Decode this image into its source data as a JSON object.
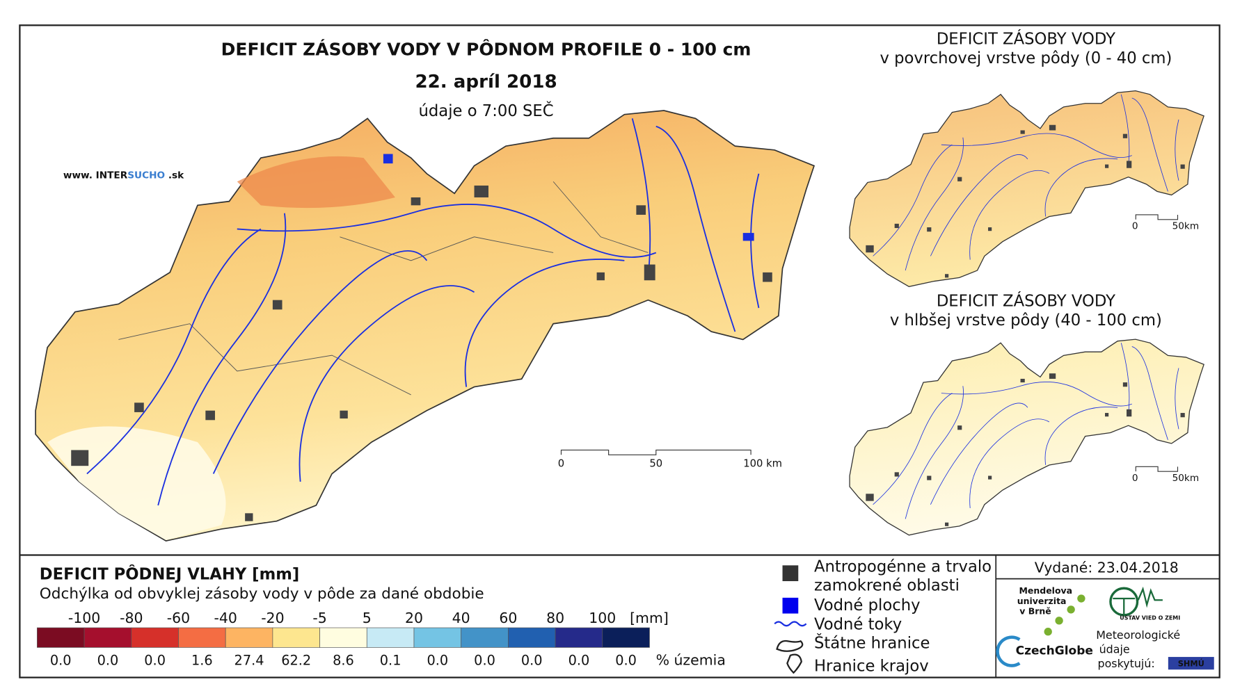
{
  "map": {
    "title": "DEFICIT ZÁSOBY VODY V PÔDNOM PROFILE 0 - 100 cm",
    "date": "22. apríl 2018",
    "time": "údaje o 7:00 SEČ",
    "website": [
      "www. INTER",
      "SUCHO",
      " .sk"
    ],
    "scale": [
      "0",
      "50",
      "100 km"
    ]
  },
  "inset_top": {
    "title": "DEFICIT ZÁSOBY VODY",
    "subtitle": "v povrchovej vrstve pôdy (0 - 40 cm)",
    "scale": [
      "0",
      "50km"
    ]
  },
  "inset_bottom": {
    "title": "DEFICIT ZÁSOBY VODY",
    "subtitle": "v hlbšej vrstve pôdy (40 - 100 cm)",
    "scale": [
      "0",
      "50km"
    ]
  },
  "legend": {
    "title": "DEFICIT PÔDNEJ VLAHY [mm]",
    "subtitle": "Odchýlka od obvyklej zásoby vody v pôde za dané obdobie",
    "thresholds": [
      "-100",
      "-80",
      "-60",
      "-40",
      "-20",
      "-5",
      "5",
      "20",
      "40",
      "60",
      "80",
      "100"
    ],
    "unit": "[mm]",
    "classes": [
      {
        "color": "#7b0c22",
        "share": "0.0"
      },
      {
        "color": "#a50f2d",
        "share": "0.0"
      },
      {
        "color": "#d6302a",
        "share": "0.0"
      },
      {
        "color": "#f46d43",
        "share": "1.6"
      },
      {
        "color": "#fdb462",
        "share": "27.4"
      },
      {
        "color": "#fde68f",
        "share": "62.2"
      },
      {
        "color": "#fffde0",
        "share": "8.6"
      },
      {
        "color": "#c7eaf5",
        "share": "0.1"
      },
      {
        "color": "#74c4e4",
        "share": "0.0"
      },
      {
        "color": "#4393c8",
        "share": "0.0"
      },
      {
        "color": "#2160b0",
        "share": "0.0"
      },
      {
        "color": "#252a8a",
        "share": "0.0"
      },
      {
        "color": "#0b1f5a",
        "share": "0.0"
      }
    ],
    "share_unit": "% územia"
  },
  "symbols": [
    "Antropogénne a trvalo",
    "zamokrené oblasti",
    "Vodné plochy",
    "Vodné toky",
    "Štátne hranice",
    "Hranice krajov"
  ],
  "issued": "Vydané: 23.04.2018",
  "logos": {
    "mendel": [
      "Mendelova",
      "univerzita",
      "v Brně"
    ],
    "czechglobe": "CzechGlobe",
    "ustav": "ÚSTAV VIED O ZEMI",
    "provider": [
      "Meteorologické",
      "údaje",
      "poskytujú:"
    ],
    "shmu": "SHMÚ"
  }
}
